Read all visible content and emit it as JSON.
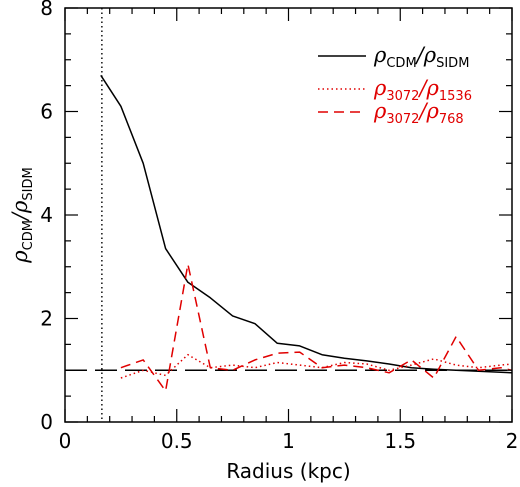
{
  "chart_data": {
    "type": "line",
    "xlabel": "Radius (kpc)",
    "ylabel": {
      "main": "ρ",
      "sub1": "CDM",
      "sep": "/ρ",
      "sub2": "SIDM"
    },
    "xlim": [
      0,
      2
    ],
    "ylim": [
      0,
      8
    ],
    "x_ticks": [
      "0",
      "0.5",
      "1",
      "1.5",
      "2"
    ],
    "y_ticks": [
      "0",
      "2",
      "4",
      "6",
      "8"
    ],
    "grid": false,
    "legend_position": "top-right",
    "legend": [
      {
        "main": "ρ",
        "sub1": "CDM",
        "sep": "/ρ",
        "sub2": "SIDM",
        "color": "#000000",
        "dash": "solid"
      },
      {
        "main": "ρ",
        "sub1": "3072",
        "sep": "/ρ",
        "sub2": "1536",
        "color": "#e00000",
        "dash": "dotted"
      },
      {
        "main": "ρ",
        "sub1": "3072",
        "sep": "/ρ",
        "sub2": "768",
        "color": "#e00000",
        "dash": "dashed"
      }
    ],
    "series": [
      {
        "color": "#000000",
        "dash": "solid",
        "points": [
          [
            0.16,
            6.7
          ],
          [
            0.25,
            6.1
          ],
          [
            0.35,
            5.0
          ],
          [
            0.45,
            3.35
          ],
          [
            0.55,
            2.7
          ],
          [
            0.65,
            2.4
          ],
          [
            0.75,
            2.05
          ],
          [
            0.85,
            1.9
          ],
          [
            0.95,
            1.52
          ],
          [
            1.05,
            1.47
          ],
          [
            1.15,
            1.3
          ],
          [
            1.25,
            1.23
          ],
          [
            1.35,
            1.18
          ],
          [
            1.45,
            1.12
          ],
          [
            1.55,
            1.05
          ],
          [
            1.65,
            1.02
          ],
          [
            1.75,
            1.0
          ],
          [
            1.85,
            0.98
          ],
          [
            1.95,
            0.96
          ],
          [
            2.0,
            0.95
          ]
        ]
      },
      {
        "color": "#e00000",
        "dash": "dotted",
        "points": [
          [
            0.25,
            0.85
          ],
          [
            0.35,
            1.0
          ],
          [
            0.45,
            0.9
          ],
          [
            0.55,
            1.3
          ],
          [
            0.65,
            1.05
          ],
          [
            0.75,
            1.1
          ],
          [
            0.85,
            1.05
          ],
          [
            0.95,
            1.15
          ],
          [
            1.05,
            1.1
          ],
          [
            1.15,
            1.05
          ],
          [
            1.25,
            1.15
          ],
          [
            1.35,
            1.12
          ],
          [
            1.45,
            1.0
          ],
          [
            1.55,
            1.1
          ],
          [
            1.65,
            1.22
          ],
          [
            1.75,
            1.1
          ],
          [
            1.85,
            1.05
          ],
          [
            1.95,
            1.1
          ],
          [
            2.0,
            1.12
          ]
        ]
      },
      {
        "color": "#e00000",
        "dash": "dashed",
        "points": [
          [
            0.25,
            1.05
          ],
          [
            0.35,
            1.2
          ],
          [
            0.45,
            0.6
          ],
          [
            0.55,
            3.05
          ],
          [
            0.65,
            1.05
          ],
          [
            0.75,
            1.0
          ],
          [
            0.85,
            1.2
          ],
          [
            0.95,
            1.33
          ],
          [
            1.05,
            1.35
          ],
          [
            1.15,
            1.05
          ],
          [
            1.25,
            1.1
          ],
          [
            1.35,
            1.05
          ],
          [
            1.45,
            0.95
          ],
          [
            1.55,
            1.2
          ],
          [
            1.65,
            0.85
          ],
          [
            1.75,
            1.65
          ],
          [
            1.85,
            1.0
          ],
          [
            1.95,
            1.05
          ],
          [
            2.0,
            1.0
          ]
        ]
      }
    ],
    "reference_lines": [
      {
        "orientation": "horizontal",
        "value": 1.0,
        "color": "#000000",
        "dash": "long-dashed"
      },
      {
        "orientation": "vertical",
        "value": 0.165,
        "color": "#000000",
        "dash": "dotted"
      }
    ]
  }
}
